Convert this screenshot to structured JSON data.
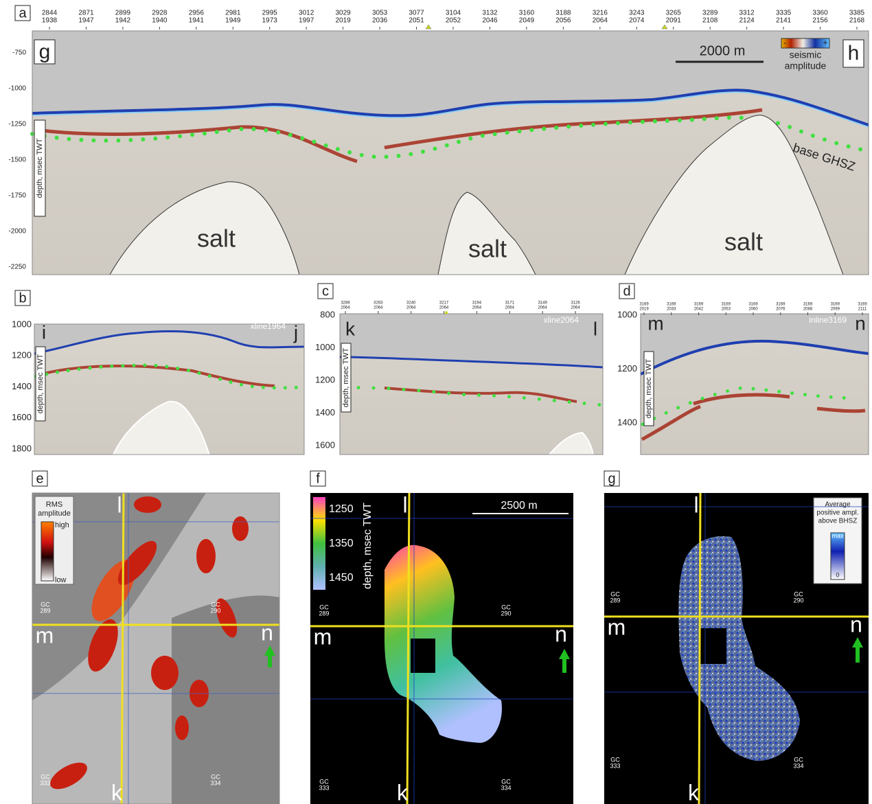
{
  "panel_a": {
    "label": "a",
    "traces": [
      {
        "top": "2844",
        "bottom": "1938"
      },
      {
        "top": "2871",
        "bottom": "1947"
      },
      {
        "top": "2899",
        "bottom": "1942"
      },
      {
        "top": "2928",
        "bottom": "1940"
      },
      {
        "top": "2956",
        "bottom": "1941"
      },
      {
        "top": "2981",
        "bottom": "1949"
      },
      {
        "top": "2995",
        "bottom": "1973"
      },
      {
        "top": "3012",
        "bottom": "1997"
      },
      {
        "top": "3029",
        "bottom": "2019"
      },
      {
        "top": "3053",
        "bottom": "2036"
      },
      {
        "top": "3077",
        "bottom": "2051"
      },
      {
        "top": "3104",
        "bottom": "2052"
      },
      {
        "top": "3132",
        "bottom": "2046"
      },
      {
        "top": "3160",
        "bottom": "2049"
      },
      {
        "top": "3188",
        "bottom": "2056"
      },
      {
        "top": "3216",
        "bottom": "2064"
      },
      {
        "top": "3243",
        "bottom": "2074"
      },
      {
        "top": "3265",
        "bottom": "2091"
      },
      {
        "top": "3289",
        "bottom": "2108"
      },
      {
        "top": "3312",
        "bottom": "2124"
      },
      {
        "top": "3335",
        "bottom": "2141"
      },
      {
        "top": "3360",
        "bottom": "2156"
      },
      {
        "top": "3385",
        "bottom": "2168"
      }
    ],
    "depth_ticks": [
      "-750",
      "-1000",
      "-1250",
      "-1500",
      "-1750",
      "-2000",
      "-2250"
    ],
    "corner_left": "g",
    "corner_right": "h",
    "scale_bar": "2000 m",
    "legend": {
      "minus": "-",
      "plus": "+",
      "title_line1": "seismic",
      "title_line2": "amplitude"
    },
    "axis_label": "depth, msec TWT",
    "horizon_label": "base GHSZ",
    "salt_labels": [
      "salt",
      "salt",
      "salt"
    ]
  },
  "panel_b": {
    "label": "b",
    "depth_ticks": [
      "1000",
      "1200",
      "1400",
      "1600",
      "1800"
    ],
    "corner_left": "i",
    "corner_right": "j",
    "line_name": "xline1964",
    "axis_label": "depth, msec TWT"
  },
  "panel_c": {
    "label": "c",
    "traces": [
      {
        "top": "3286",
        "bottom": "2064"
      },
      {
        "top": "3263",
        "bottom": "2064"
      },
      {
        "top": "3240",
        "bottom": "2064"
      },
      {
        "top": "3217",
        "bottom": "2064"
      },
      {
        "top": "3194",
        "bottom": "2064"
      },
      {
        "top": "3171",
        "bottom": "2064"
      },
      {
        "top": "3149",
        "bottom": "2064"
      },
      {
        "top": "3126",
        "bottom": "2064"
      }
    ],
    "depth_ticks": [
      "800",
      "1000",
      "1200",
      "1400",
      "1600"
    ],
    "corner_left": "k",
    "corner_right": "l",
    "line_name": "xline2064",
    "axis_label": "depth, msec TWT"
  },
  "panel_d": {
    "label": "d",
    "traces": [
      {
        "top": "3169",
        "bottom": "2019"
      },
      {
        "top": "3169",
        "bottom": "2033"
      },
      {
        "top": "3169",
        "bottom": "2042"
      },
      {
        "top": "3169",
        "bottom": "2053"
      },
      {
        "top": "3169",
        "bottom": "2060"
      },
      {
        "top": "3169",
        "bottom": "2076"
      },
      {
        "top": "3169",
        "bottom": "2088"
      },
      {
        "top": "3169",
        "bottom": "2099"
      },
      {
        "top": "3169",
        "bottom": "2111"
      }
    ],
    "depth_ticks": [
      "1000",
      "1200",
      "1400"
    ],
    "corner_left": "m",
    "corner_right": "n",
    "line_name": "inline3169",
    "axis_label": "depth, msec TWT"
  },
  "panel_e": {
    "label": "e",
    "legend": {
      "title_line1": "RMS",
      "title_line2": "amplitude",
      "high": "high",
      "low": "low"
    },
    "line_labels": {
      "top": "l",
      "left": "m",
      "right": "n",
      "bottom": "k"
    },
    "blocks": [
      {
        "prefix": "GC",
        "number": "289"
      },
      {
        "prefix": "GC",
        "number": "290"
      },
      {
        "prefix": "GC",
        "number": "333"
      },
      {
        "prefix": "GC",
        "number": "334"
      }
    ]
  },
  "panel_f": {
    "label": "f",
    "colorbar_ticks": [
      "1250",
      "1350",
      "1450"
    ],
    "colorbar_title": "depth, msec TWT",
    "scale_bar": "2500 m",
    "line_labels": {
      "top": "l",
      "left": "m",
      "right": "n",
      "bottom": "k"
    },
    "blocks": [
      {
        "prefix": "GC",
        "number": "289"
      },
      {
        "prefix": "GC",
        "number": "290"
      },
      {
        "prefix": "GC",
        "number": "333"
      },
      {
        "prefix": "GC",
        "number": "334"
      }
    ]
  },
  "panel_g": {
    "label": "g",
    "legend": {
      "line1": "Average",
      "line2": "positive ampl.",
      "line3": "above BHSZ",
      "max": "max",
      "min": "0"
    },
    "line_labels": {
      "top": "l",
      "left": "m",
      "right": "n",
      "bottom": "k"
    },
    "blocks": [
      {
        "prefix": "GC",
        "number": "289"
      },
      {
        "prefix": "GC",
        "number": "290"
      },
      {
        "prefix": "GC",
        "number": "333"
      },
      {
        "prefix": "GC",
        "number": "334"
      }
    ]
  }
}
